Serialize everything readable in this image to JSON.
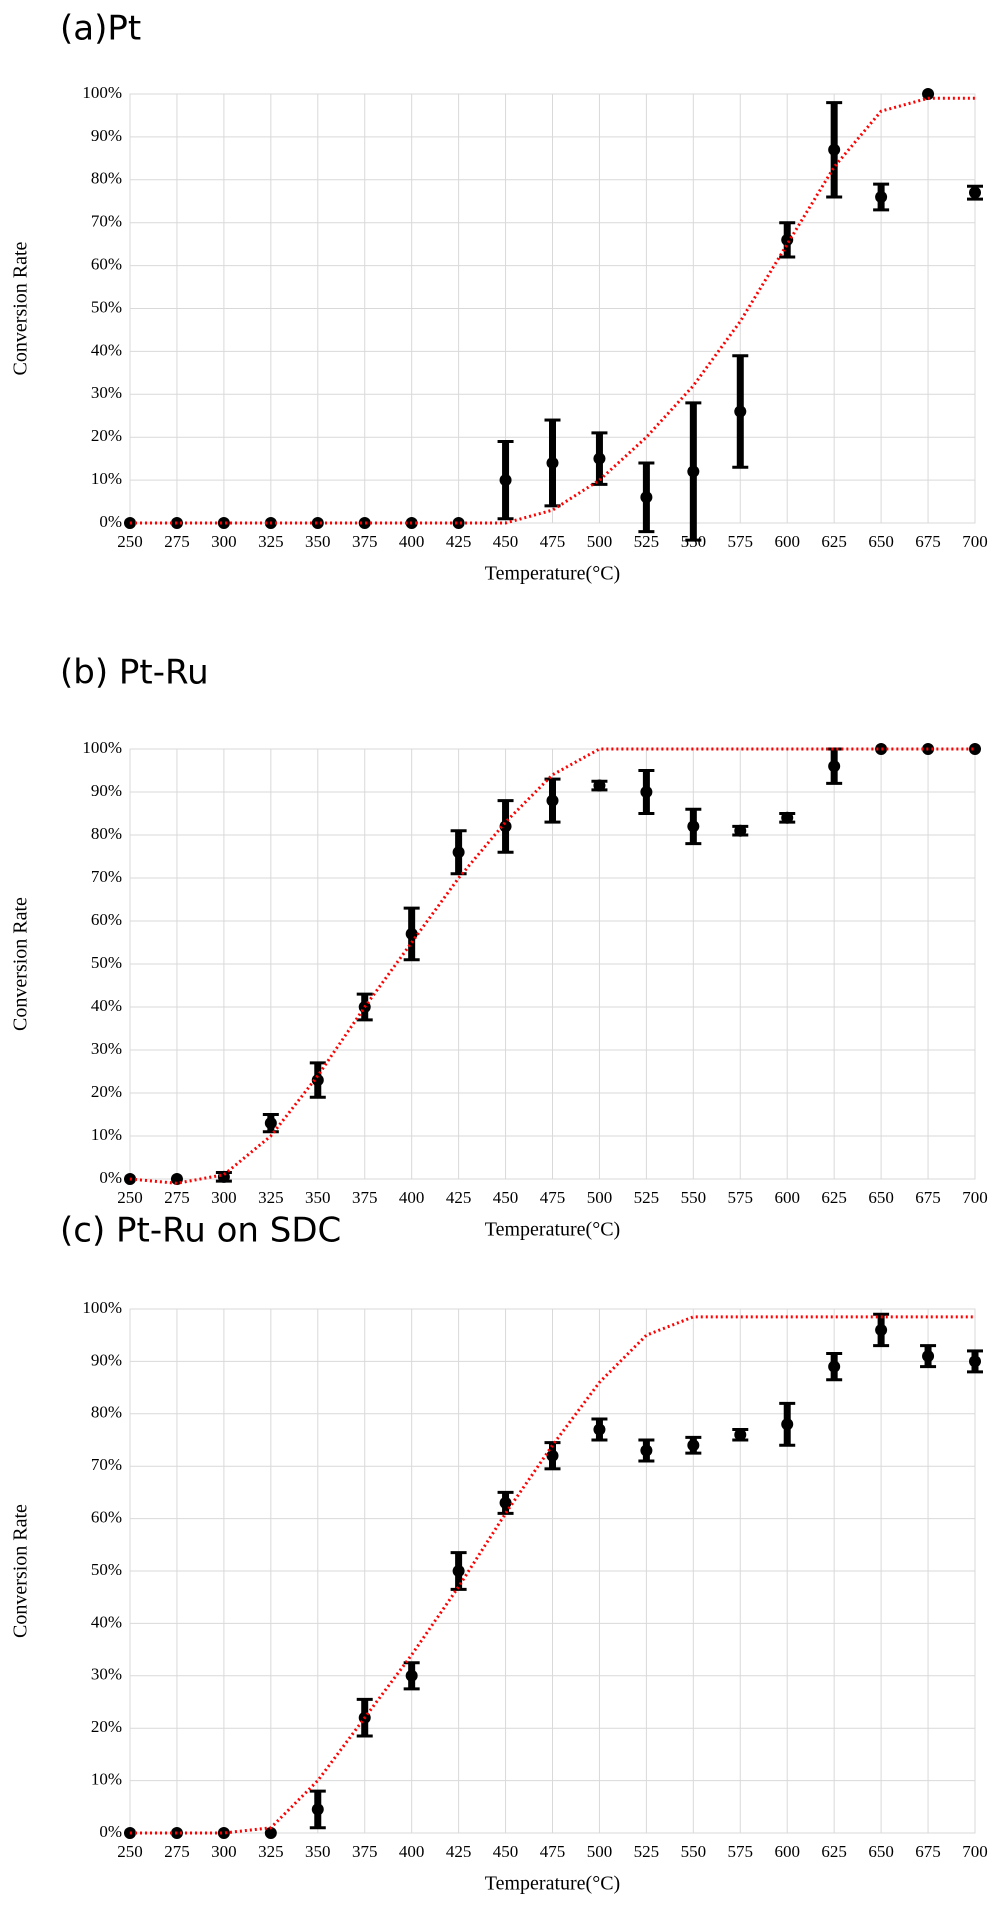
{
  "chart_data": [
    {
      "type": "scatter",
      "title": "(a)Pt",
      "x_label": "Temperature(°C)",
      "y_label": "Conversion Rate",
      "x": [
        250,
        275,
        300,
        325,
        350,
        375,
        400,
        425,
        450,
        475,
        500,
        525,
        550,
        575,
        600,
        625,
        650,
        675,
        700
      ],
      "xlim": [
        250,
        700
      ],
      "xticks": [
        250,
        275,
        300,
        325,
        350,
        375,
        400,
        425,
        450,
        475,
        500,
        525,
        550,
        575,
        600,
        625,
        650,
        675,
        700
      ],
      "ylim": [
        0,
        100
      ],
      "yticks": [
        {
          "value": 0,
          "label": "0%"
        },
        {
          "value": 10,
          "label": "10%"
        },
        {
          "value": 20,
          "label": "20%"
        },
        {
          "value": 30,
          "label": "30%"
        },
        {
          "value": 40,
          "label": "40%"
        },
        {
          "value": 50,
          "label": "50%"
        },
        {
          "value": 60,
          "label": "60%"
        },
        {
          "value": 70,
          "label": "70%"
        },
        {
          "value": 80,
          "label": "80%"
        },
        {
          "value": 90,
          "label": "90%"
        },
        {
          "value": 100,
          "label": "100%"
        }
      ],
      "grid": true,
      "series": [
        {
          "color": "#000000",
          "values": [
            0,
            0,
            0,
            0,
            0,
            0,
            0,
            0,
            10,
            14,
            15,
            6,
            12,
            26,
            66,
            87,
            76,
            100,
            77
          ],
          "errors": [
            0,
            0,
            0,
            0,
            0,
            0,
            0,
            0,
            9,
            10,
            6,
            8,
            16,
            13,
            4,
            11,
            3,
            0,
            1.5
          ]
        },
        {
          "color": "#ff0000",
          "line": "dotted",
          "values": [
            0,
            0,
            0,
            0,
            0,
            0,
            0,
            0,
            0,
            3,
            10,
            20,
            32,
            47,
            65,
            83,
            96,
            99,
            99
          ]
        }
      ]
    },
    {
      "type": "scatter",
      "title": "(b) Pt-Ru",
      "x_label": "Temperature(°C)",
      "y_label": "Conversion Rate",
      "x": [
        250,
        275,
        300,
        325,
        350,
        375,
        400,
        425,
        450,
        475,
        500,
        525,
        550,
        575,
        600,
        625,
        650,
        675,
        700
      ],
      "xlim": [
        250,
        700
      ],
      "xticks": [
        250,
        275,
        300,
        325,
        350,
        375,
        400,
        425,
        450,
        475,
        500,
        525,
        550,
        575,
        600,
        625,
        650,
        675,
        700
      ],
      "ylim": [
        0,
        100
      ],
      "yticks": [
        {
          "value": 0,
          "label": "0%"
        },
        {
          "value": 10,
          "label": "10%"
        },
        {
          "value": 20,
          "label": "20%"
        },
        {
          "value": 30,
          "label": "30%"
        },
        {
          "value": 40,
          "label": "40%"
        },
        {
          "value": 50,
          "label": "50%"
        },
        {
          "value": 60,
          "label": "60%"
        },
        {
          "value": 70,
          "label": "70%"
        },
        {
          "value": 80,
          "label": "80%"
        },
        {
          "value": 90,
          "label": "90%"
        },
        {
          "value": 100,
          "label": "100%"
        }
      ],
      "grid": true,
      "series": [
        {
          "color": "#000000",
          "values": [
            0,
            0,
            0.5,
            13,
            23,
            40,
            57,
            76,
            82,
            88,
            91.5,
            90,
            82,
            81,
            84,
            96,
            100,
            100,
            100
          ],
          "errors": [
            0,
            0,
            1,
            2,
            4,
            3,
            6,
            5,
            6,
            5,
            1,
            5,
            4,
            1,
            1,
            4,
            0,
            0,
            0
          ]
        },
        {
          "color": "#ff0000",
          "line": "dotted",
          "values": [
            0,
            -1,
            1,
            10,
            24,
            40,
            55,
            70,
            83,
            94,
            100,
            100,
            100,
            100,
            100,
            100,
            100,
            100,
            100
          ]
        }
      ]
    },
    {
      "type": "scatter",
      "title": "(c) Pt-Ru on SDC",
      "x_label": "Temperature(°C)",
      "y_label": "Conversion Rate",
      "x": [
        250,
        275,
        300,
        325,
        350,
        375,
        400,
        425,
        450,
        475,
        500,
        525,
        550,
        575,
        600,
        625,
        650,
        675,
        700
      ],
      "xlim": [
        250,
        700
      ],
      "xticks": [
        250,
        275,
        300,
        325,
        350,
        375,
        400,
        425,
        450,
        475,
        500,
        525,
        550,
        575,
        600,
        625,
        650,
        675,
        700
      ],
      "ylim": [
        0,
        100
      ],
      "yticks": [
        {
          "value": 0,
          "label": "0%"
        },
        {
          "value": 10,
          "label": "10%"
        },
        {
          "value": 20,
          "label": "20%"
        },
        {
          "value": 30,
          "label": "30%"
        },
        {
          "value": 40,
          "label": "40%"
        },
        {
          "value": 50,
          "label": "50%"
        },
        {
          "value": 60,
          "label": "60%"
        },
        {
          "value": 70,
          "label": "70%"
        },
        {
          "value": 80,
          "label": "80%"
        },
        {
          "value": 90,
          "label": "90%"
        },
        {
          "value": 100,
          "label": "100%"
        }
      ],
      "grid": true,
      "series": [
        {
          "color": "#000000",
          "values": [
            0,
            0,
            0,
            0,
            4.5,
            22,
            30,
            50,
            63,
            72,
            77,
            73,
            74,
            76,
            78,
            89,
            96,
            91,
            90
          ],
          "errors": [
            0,
            0,
            0,
            0,
            3.5,
            3.5,
            2.5,
            3.5,
            2,
            2.5,
            2,
            2,
            1.5,
            1,
            4,
            2.5,
            3,
            2,
            2
          ]
        },
        {
          "color": "#ff0000",
          "line": "dotted",
          "values": [
            0,
            0,
            0,
            1,
            10,
            22,
            34,
            47,
            61,
            74,
            86,
            95,
            98.5,
            98.5,
            98.5,
            98.5,
            98.5,
            98.5,
            98.5
          ]
        }
      ]
    }
  ]
}
